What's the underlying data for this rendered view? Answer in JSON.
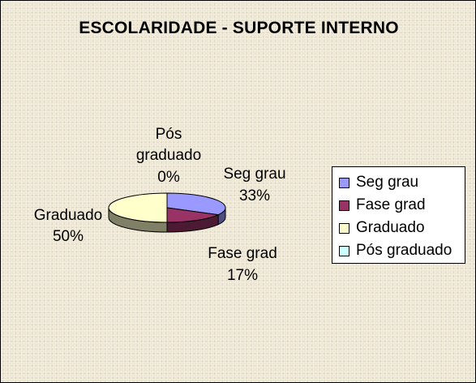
{
  "chart_data": {
    "type": "pie",
    "style": "3d",
    "title": "ESCOLARIDADE - SUPORTE INTERNO",
    "categories": [
      "Seg grau",
      "Fase grad",
      "Graduado",
      "Pós graduado"
    ],
    "values": [
      33,
      17,
      50,
      0
    ],
    "data_labels": [
      {
        "category": "Seg grau",
        "percent": "33%"
      },
      {
        "category": "Fase grad",
        "percent": "17%"
      },
      {
        "category": "Graduado",
        "percent": "50%"
      },
      {
        "category": "Pós graduado",
        "label_lines": [
          "Pós",
          "graduado"
        ],
        "percent": "0%"
      }
    ],
    "colors": [
      "#9999ff",
      "#993366",
      "#ffffcc",
      "#ccffff"
    ],
    "legend": {
      "position": "right",
      "entries": [
        "Seg grau",
        "Fase grad",
        "Graduado",
        "Pós graduado"
      ]
    },
    "background": "#ede6d2"
  }
}
